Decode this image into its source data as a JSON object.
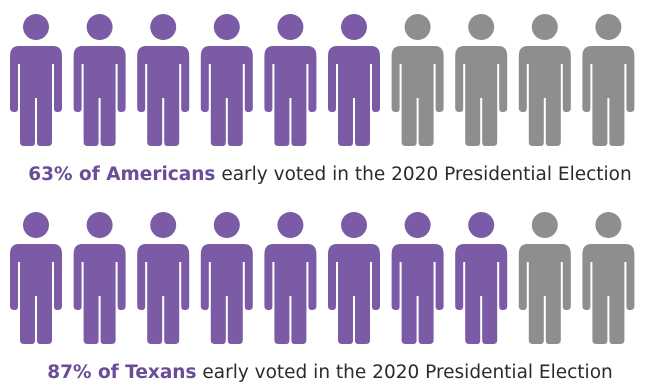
{
  "chart_data": [
    {
      "type": "pictograph",
      "value_percent": 63,
      "icons_total": 10,
      "icons_filled": 6,
      "caption_bold": "63% of Americans",
      "caption_rest": " early voted in the 2020 Presidential Election"
    },
    {
      "type": "pictograph",
      "value_percent": 87,
      "icons_total": 10,
      "icons_filled": 8,
      "caption_bold": "87% of Texans",
      "caption_rest": " early voted in the 2020 Presidential Election"
    }
  ],
  "colors": {
    "filled": "#7b5aa6",
    "empty": "#8e8e8e",
    "accent_text": "#6b4c99",
    "text": "#2b2b2b"
  },
  "icon": "person-icon"
}
